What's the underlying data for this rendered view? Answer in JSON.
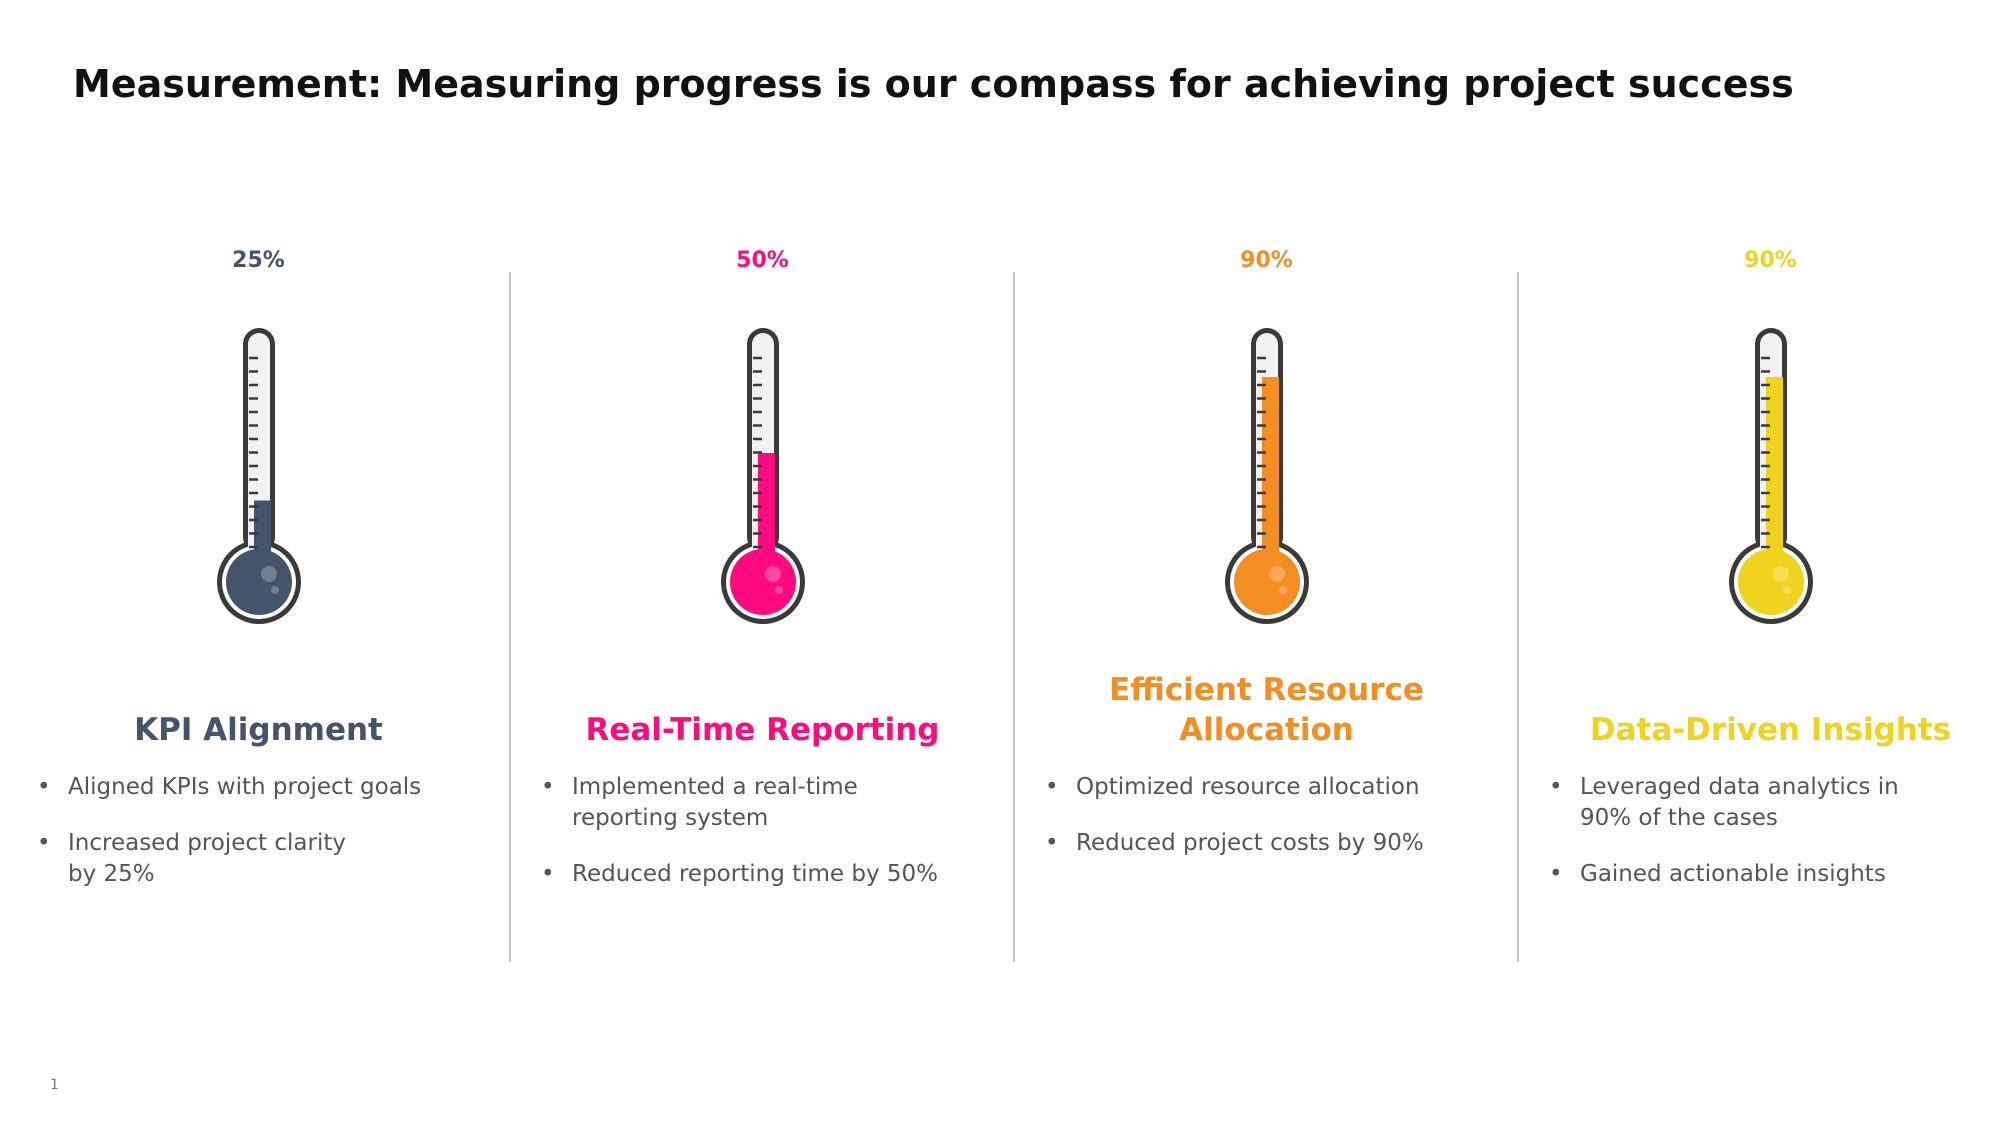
{
  "title": "Measurement: Measuring progress is our compass for achieving project success",
  "page_number": "1",
  "columns": [
    {
      "percent_label": "25%",
      "fill_fraction": 0.25,
      "color": "#44546a",
      "title_lines": [
        "KPI Alignment"
      ],
      "bullets": [
        [
          "Aligned KPIs with project goals"
        ],
        [
          "Increased project clarity",
          "by 25%"
        ]
      ]
    },
    {
      "percent_label": "50%",
      "fill_fraction": 0.5,
      "color": "#ff0a7f",
      "title_lines": [
        "Real-Time Reporting"
      ],
      "bullets": [
        [
          "Implemented a real-time",
          "reporting system"
        ],
        [
          "Reduced reporting time by 50%"
        ]
      ]
    },
    {
      "percent_label": "90%",
      "fill_fraction": 0.9,
      "color": "#f48d22",
      "title_lines": [
        "Efficient Resource",
        "Allocation"
      ],
      "bullets": [
        [
          "Optimized resource allocation"
        ],
        [
          "Reduced project costs by 90%"
        ]
      ]
    },
    {
      "percent_label": "90%",
      "fill_fraction": 0.9,
      "color": "#f0d31e",
      "title_lines": [
        "Data-Driven Insights"
      ],
      "bullets": [
        [
          "Leveraged data analytics in",
          "90% of the cases"
        ],
        [
          "Gained actionable insights"
        ]
      ]
    }
  ]
}
